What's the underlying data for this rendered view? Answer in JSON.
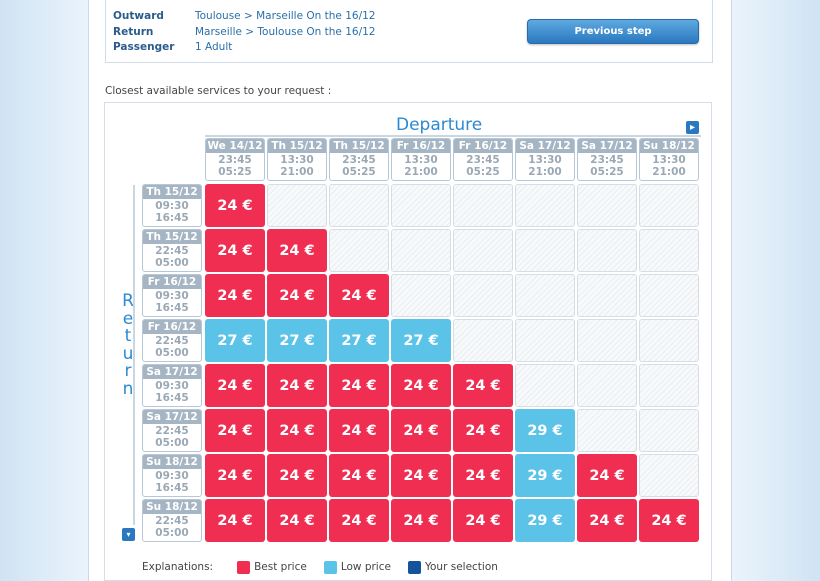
{
  "summary": {
    "outward_label": "Outward",
    "outward_value": "Toulouse > Marseille On the 16/12",
    "return_label": "Return",
    "return_value": "Marseille > Toulouse On the 16/12",
    "passenger_label": "Passenger",
    "passenger_value": "1 Adult",
    "previous_step": "Previous step"
  },
  "closest_text": "Closest available services to your request :",
  "grid": {
    "departure_title": "Departure",
    "return_title": "Return",
    "columns": [
      {
        "date": "We 14/12",
        "t1": "23:45",
        "t2": "05:25"
      },
      {
        "date": "Th 15/12",
        "t1": "13:30",
        "t2": "21:00"
      },
      {
        "date": "Th 15/12",
        "t1": "23:45",
        "t2": "05:25"
      },
      {
        "date": "Fr 16/12",
        "t1": "13:30",
        "t2": "21:00"
      },
      {
        "date": "Fr 16/12",
        "t1": "23:45",
        "t2": "05:25"
      },
      {
        "date": "Sa 17/12",
        "t1": "13:30",
        "t2": "21:00"
      },
      {
        "date": "Sa 17/12",
        "t1": "23:45",
        "t2": "05:25"
      },
      {
        "date": "Su 18/12",
        "t1": "13:30",
        "t2": "21:00"
      }
    ],
    "rows": [
      {
        "date": "Th 15/12",
        "t1": "09:30",
        "t2": "16:45",
        "cells": [
          {
            "p": "24 €",
            "k": "best"
          },
          null,
          null,
          null,
          null,
          null,
          null,
          null
        ]
      },
      {
        "date": "Th 15/12",
        "t1": "22:45",
        "t2": "05:00",
        "cells": [
          {
            "p": "24 €",
            "k": "best"
          },
          {
            "p": "24 €",
            "k": "best"
          },
          null,
          null,
          null,
          null,
          null,
          null
        ]
      },
      {
        "date": "Fr 16/12",
        "t1": "09:30",
        "t2": "16:45",
        "cells": [
          {
            "p": "24 €",
            "k": "best"
          },
          {
            "p": "24 €",
            "k": "best"
          },
          {
            "p": "24 €",
            "k": "best"
          },
          null,
          null,
          null,
          null,
          null
        ]
      },
      {
        "date": "Fr 16/12",
        "t1": "22:45",
        "t2": "05:00",
        "cells": [
          {
            "p": "27 €",
            "k": "low"
          },
          {
            "p": "27 €",
            "k": "low"
          },
          {
            "p": "27 €",
            "k": "low"
          },
          {
            "p": "27 €",
            "k": "low"
          },
          null,
          null,
          null,
          null
        ]
      },
      {
        "date": "Sa 17/12",
        "t1": "09:30",
        "t2": "16:45",
        "cells": [
          {
            "p": "24 €",
            "k": "best"
          },
          {
            "p": "24 €",
            "k": "best"
          },
          {
            "p": "24 €",
            "k": "best"
          },
          {
            "p": "24 €",
            "k": "best"
          },
          {
            "p": "24 €",
            "k": "best"
          },
          null,
          null,
          null
        ]
      },
      {
        "date": "Sa 17/12",
        "t1": "22:45",
        "t2": "05:00",
        "cells": [
          {
            "p": "24 €",
            "k": "best"
          },
          {
            "p": "24 €",
            "k": "best"
          },
          {
            "p": "24 €",
            "k": "best"
          },
          {
            "p": "24 €",
            "k": "best"
          },
          {
            "p": "24 €",
            "k": "best"
          },
          {
            "p": "29 €",
            "k": "low"
          },
          null,
          null
        ]
      },
      {
        "date": "Su 18/12",
        "t1": "09:30",
        "t2": "16:45",
        "cells": [
          {
            "p": "24 €",
            "k": "best"
          },
          {
            "p": "24 €",
            "k": "best"
          },
          {
            "p": "24 €",
            "k": "best"
          },
          {
            "p": "24 €",
            "k": "best"
          },
          {
            "p": "24 €",
            "k": "best"
          },
          {
            "p": "29 €",
            "k": "low"
          },
          {
            "p": "24 €",
            "k": "best"
          },
          null
        ]
      },
      {
        "date": "Su 18/12",
        "t1": "22:45",
        "t2": "05:00",
        "cells": [
          {
            "p": "24 €",
            "k": "best"
          },
          {
            "p": "24 €",
            "k": "best"
          },
          {
            "p": "24 €",
            "k": "best"
          },
          {
            "p": "24 €",
            "k": "best"
          },
          {
            "p": "24 €",
            "k": "best"
          },
          {
            "p": "29 €",
            "k": "low"
          },
          {
            "p": "24 €",
            "k": "best"
          },
          {
            "p": "24 €",
            "k": "best"
          }
        ]
      }
    ]
  },
  "legend": {
    "label": "Explanations:",
    "best": "Best price",
    "low": "Low price",
    "selection": "Your selection"
  },
  "colors": {
    "best": "#ef2e52",
    "low": "#5bc3e8",
    "selection": "#15549a",
    "accent": "#2b8ad1"
  }
}
